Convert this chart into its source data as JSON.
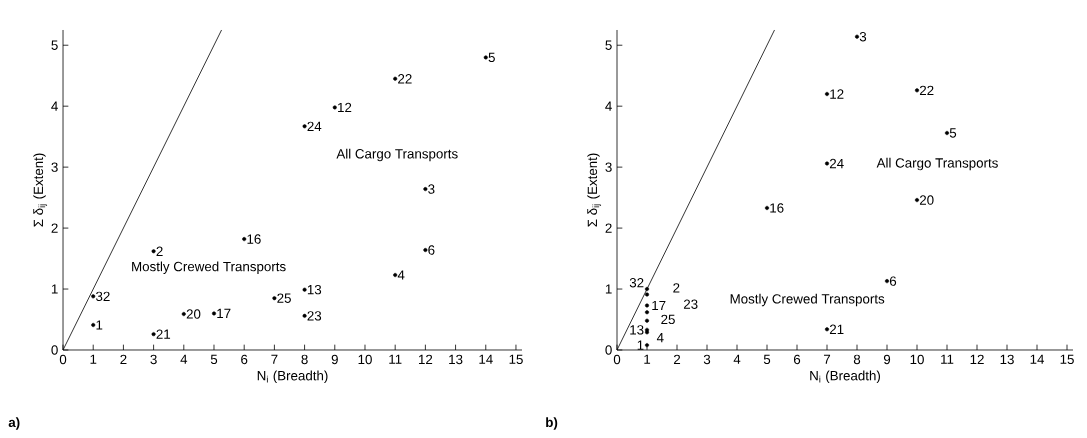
{
  "chart_data": [
    {
      "type": "scatter",
      "title": "a)",
      "xlabel": "N$_{i}$ (Breadth)",
      "ylabel": "Σ δ$_{ij}$ (Extent)",
      "xlim": [
        0,
        15.2
      ],
      "ylim": [
        0,
        5.25
      ],
      "xticks": [
        0,
        1,
        2,
        3,
        4,
        5,
        6,
        7,
        8,
        9,
        10,
        11,
        12,
        13,
        14,
        15
      ],
      "yticks": [
        0,
        1,
        2,
        3,
        4,
        5
      ],
      "series": [
        {
          "color": "#000000",
          "marker": "circle",
          "x": [
            14,
            11,
            9,
            8,
            12,
            6,
            3,
            12,
            11,
            8,
            1,
            7,
            4,
            5,
            8,
            1,
            3
          ],
          "values": [
            4.8,
            4.45,
            3.98,
            3.67,
            2.64,
            1.82,
            1.62,
            1.64,
            1.23,
            0.99,
            0.88,
            0.85,
            0.59,
            0.6,
            0.56,
            0.41,
            0.26
          ]
        },
        {
          "type": "line",
          "color": "#000000",
          "marker": "none",
          "line_style": "solid",
          "x": [
            0,
            5.25
          ],
          "values": [
            0,
            5.25
          ]
        }
      ],
      "annotations": [
        {
          "text": "5",
          "x": 14,
          "y": 4.8
        },
        {
          "text": "22",
          "x": 11,
          "y": 4.45
        },
        {
          "text": "12",
          "x": 9,
          "y": 3.98
        },
        {
          "text": "24",
          "x": 8,
          "y": 3.67
        },
        {
          "text": "3",
          "x": 12,
          "y": 2.64
        },
        {
          "text": "16",
          "x": 6,
          "y": 1.82
        },
        {
          "text": "2",
          "x": 3,
          "y": 1.62
        },
        {
          "text": "6",
          "x": 12,
          "y": 1.64
        },
        {
          "text": "4",
          "x": 11,
          "y": 1.23
        },
        {
          "text": "13",
          "x": 8,
          "y": 0.99
        },
        {
          "text": "32",
          "x": 1,
          "y": 0.88
        },
        {
          "text": "25",
          "x": 7,
          "y": 0.85
        },
        {
          "text": "20",
          "x": 4,
          "y": 0.59
        },
        {
          "text": "17",
          "x": 5,
          "y": 0.6
        },
        {
          "text": "23",
          "x": 8,
          "y": 0.56
        },
        {
          "text": "1",
          "x": 1,
          "y": 0.41
        },
        {
          "text": "21",
          "x": 3,
          "y": 0.26
        },
        "All Cargo Transports",
        "Mostly Crewed Transports"
      ]
    },
    {
      "type": "scatter",
      "title": "b)",
      "xlabel": "N$_{i}$ (Breadth)",
      "ylabel": "Σ δ$_{ij}$ (Extent)",
      "xlim": [
        0,
        15.2
      ],
      "ylim": [
        0,
        5.25
      ],
      "xticks": [
        0,
        1,
        2,
        3,
        4,
        5,
        6,
        7,
        8,
        9,
        10,
        11,
        12,
        13,
        14,
        15
      ],
      "yticks": [
        0,
        1,
        2,
        3,
        4,
        5
      ],
      "series": [
        {
          "color": "#000000",
          "marker": "circle",
          "x": [
            8,
            7,
            10,
            11,
            7,
            10,
            5,
            9,
            7,
            1,
            1,
            1,
            1,
            1,
            1,
            1,
            1
          ],
          "values": [
            5.14,
            4.2,
            4.26,
            3.56,
            3.06,
            2.46,
            2.33,
            1.13,
            0.34,
            1.0,
            0.91,
            0.73,
            0.62,
            0.48,
            0.33,
            0.29,
            0.08
          ]
        },
        {
          "type": "line",
          "color": "#000000",
          "marker": "none",
          "line_style": "solid",
          "x": [
            0,
            5.25
          ],
          "values": [
            0,
            5.25
          ]
        }
      ],
      "annotations": [
        {
          "text": "3",
          "x": 8,
          "y": 5.14
        },
        {
          "text": "12",
          "x": 7,
          "y": 4.2
        },
        {
          "text": "22",
          "x": 10,
          "y": 4.26
        },
        {
          "text": "5",
          "x": 11,
          "y": 3.56
        },
        {
          "text": "24",
          "x": 7,
          "y": 3.06
        },
        {
          "text": "20",
          "x": 10,
          "y": 2.46
        },
        {
          "text": "16",
          "x": 5,
          "y": 2.33
        },
        {
          "text": "6",
          "x": 9,
          "y": 1.13
        },
        {
          "text": "21",
          "x": 7,
          "y": 0.34
        },
        {
          "text": "32",
          "x": 1,
          "y": 1.0
        },
        {
          "text": "2",
          "x": 1,
          "y": 0.91
        },
        {
          "text": "17",
          "x": 1,
          "y": 0.73
        },
        {
          "text": "23",
          "x": 1,
          "y": 0.62
        },
        {
          "text": "25",
          "x": 1,
          "y": 0.48
        },
        {
          "text": "13",
          "x": 1,
          "y": 0.33
        },
        {
          "text": "4",
          "x": 1,
          "y": 0.29
        },
        {
          "text": "1",
          "x": 1,
          "y": 0.08
        },
        "All Cargo Transports",
        "Mostly Crewed Transports"
      ]
    }
  ]
}
